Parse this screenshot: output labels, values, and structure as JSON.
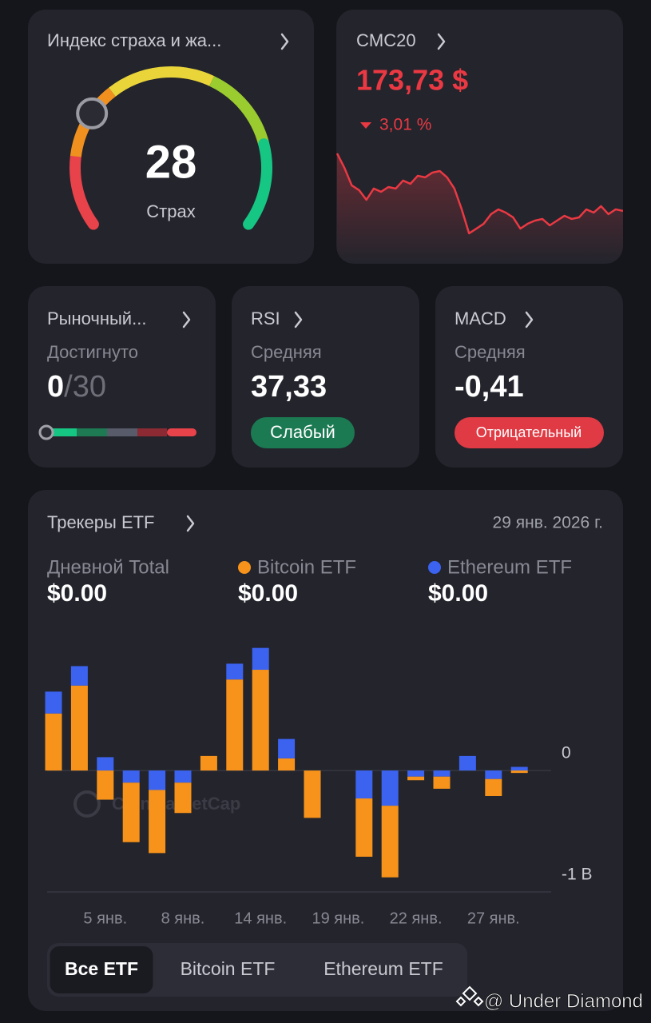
{
  "fear_greed": {
    "title": "Индекс страха и жа...",
    "value": 28,
    "label": "Страх",
    "range": [
      0,
      100
    ]
  },
  "cmc20": {
    "title": "CMC20",
    "price": "173,73 $",
    "change": "3,01 %",
    "sparkline": [
      179.11,
      177.73,
      176.04,
      175.58,
      174.65,
      175.73,
      175.42,
      175.88,
      175.73,
      176.5,
      176.19,
      176.96,
      176.81,
      177.27,
      177.42,
      176.81,
      175.73,
      173.73,
      171.42,
      171.88,
      172.35,
      173.27,
      173.73,
      173.42,
      172.96,
      171.88,
      172.35,
      172.65,
      172.81,
      172.19,
      172.65,
      173.11,
      172.81,
      172.96,
      173.73,
      173.42,
      174.04,
      173.27,
      173.73,
      173.58
    ]
  },
  "market_cycle": {
    "title": "Рыночный...",
    "subtitle": "Достигнуто",
    "value": 0,
    "of": "/30",
    "scale": [
      0,
      30
    ]
  },
  "rsi": {
    "title": "RSI",
    "subtitle": "Средняя",
    "value": "37,33",
    "badge": "Слабый"
  },
  "macd": {
    "title": "MACD",
    "subtitle": "Средняя",
    "value": "-0,41",
    "badge": "Отрицательный"
  },
  "etf": {
    "title": "Трекеры ETF",
    "date": "29 янв. 2026 г.",
    "daily_total_label": "Дневной Total",
    "daily_total": "$0.00",
    "bitcoin_total": "$0.00",
    "ethereum_total": "$0.00",
    "tabs": [
      "Все ETF",
      "Bitcoin ETF",
      "Ethereum ETF"
    ],
    "selected_tab": 0
  },
  "chart_data": {
    "type": "bar",
    "stacked": true,
    "watermark": "CoinMarketCap",
    "categories": [
      null,
      null,
      "5 янв.",
      null,
      null,
      "8 янв.",
      null,
      null,
      "14 янв.",
      null,
      null,
      "19 янв.",
      null,
      null,
      "22 янв.",
      null,
      null,
      "27 янв.",
      null
    ],
    "series": [
      {
        "name": "Bitcoin ETF",
        "color": "#f7931a",
        "values": [
          0.47,
          0.7,
          -0.24,
          -0.49,
          -0.52,
          -0.25,
          0.12,
          0.75,
          0.83,
          0.1,
          -0.39,
          0,
          -0.48,
          -0.59,
          -0.03,
          -0.1,
          0,
          -0.14,
          -0.02
        ]
      },
      {
        "name": "Ethereum ETF",
        "color": "#3b63f0",
        "values": [
          0.18,
          0.16,
          0.11,
          -0.1,
          -0.16,
          -0.1,
          0,
          0.13,
          0.18,
          0.16,
          0,
          0,
          -0.23,
          -0.29,
          -0.05,
          -0.05,
          0.12,
          -0.07,
          0.03
        ]
      }
    ],
    "ylim": [
      -1,
      1.1
    ],
    "yticks": [
      0,
      {
        "value": -1,
        "label": "-1 B"
      }
    ],
    "grid": true
  },
  "footer": {
    "watermark": "@ Under Diamond"
  }
}
